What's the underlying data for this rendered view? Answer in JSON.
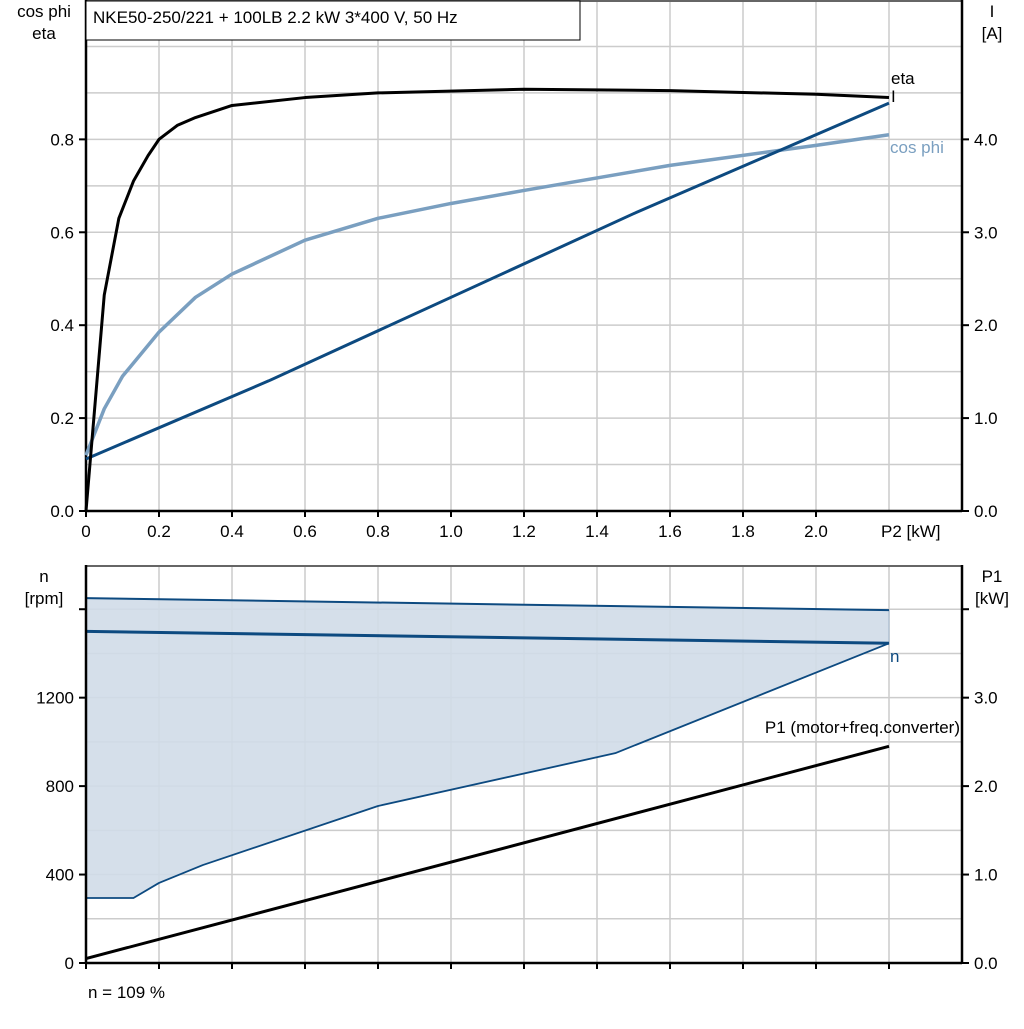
{
  "title": "NKE50-250/221 + 100LB   2.2 kW   3*400 V, 50 Hz",
  "footer": "n = 109 %",
  "colors": {
    "eta": "#000000",
    "current": "#0d4a80",
    "cosphi": "#7a9fc0",
    "speed": "#0d4a80",
    "band_fill": "#d0dce8",
    "p1": "#000000",
    "grid": "#cccccc"
  },
  "chart_data": [
    {
      "type": "line",
      "xlabel": "P2 [kW]",
      "xlim": [
        0,
        2.4
      ],
      "xticks": [
        "0",
        "0.2",
        "0.4",
        "0.6",
        "0.8",
        "1.0",
        "1.2",
        "1.4",
        "1.6",
        "1.8",
        "2.0"
      ],
      "ylabel_left": [
        "cos phi",
        "eta"
      ],
      "ylim_left": [
        0,
        1.1
      ],
      "yticks_left": [
        "0.0",
        "0.2",
        "0.4",
        "0.6",
        "0.8"
      ],
      "ylabel_right": [
        "I",
        "[A]"
      ],
      "ylim_right": [
        0,
        5.5
      ],
      "yticks_right": [
        "0.0",
        "1.0",
        "2.0",
        "3.0",
        "4.0"
      ],
      "grid": true,
      "series": [
        {
          "name": "eta",
          "axis": "left",
          "x": [
            0,
            0.05,
            0.09,
            0.13,
            0.17,
            0.2,
            0.25,
            0.3,
            0.4,
            0.6,
            0.8,
            1.2,
            1.6,
            2.0,
            2.2
          ],
          "y": [
            0,
            0.465,
            0.63,
            0.71,
            0.765,
            0.8,
            0.83,
            0.847,
            0.873,
            0.89,
            0.9,
            0.908,
            0.905,
            0.897,
            0.89
          ]
        },
        {
          "name": "cos phi",
          "axis": "left",
          "x": [
            0,
            0.05,
            0.1,
            0.2,
            0.3,
            0.4,
            0.6,
            0.8,
            1.0,
            1.2,
            1.6,
            2.0,
            2.2
          ],
          "y": [
            0.12,
            0.22,
            0.29,
            0.385,
            0.46,
            0.51,
            0.583,
            0.63,
            0.662,
            0.69,
            0.744,
            0.787,
            0.81
          ]
        },
        {
          "name": "I",
          "axis": "right",
          "x": [
            0,
            0.5,
            1.0,
            1.5,
            2.2
          ],
          "y": [
            0.56,
            1.4,
            2.3,
            3.2,
            4.39
          ]
        }
      ]
    },
    {
      "type": "line",
      "xlim": [
        0,
        2.4
      ],
      "ylabel_left": [
        "n",
        "[rpm]"
      ],
      "ylim_left": [
        0,
        1800
      ],
      "yticks_left": [
        "0",
        "400",
        "800",
        "1200"
      ],
      "ylabel_right": [
        "P1",
        "[kW]"
      ],
      "ylim_right": [
        0,
        4.5
      ],
      "yticks_right": [
        "0.0",
        "1.0",
        "2.0",
        "3.0"
      ],
      "grid": true,
      "series": [
        {
          "name": "n",
          "axis": "left",
          "x": [
            0,
            2.2
          ],
          "y": [
            1500,
            1446
          ]
        },
        {
          "role": "n max",
          "axis": "left",
          "x": [
            0,
            2.2
          ],
          "y": [
            1650,
            1596
          ]
        },
        {
          "role": "n min",
          "axis": "left",
          "x": [
            0,
            0.13,
            0.2,
            0.32,
            0.8,
            1.45,
            2.2
          ],
          "y": [
            294,
            294,
            362,
            443,
            710,
            949,
            1446
          ]
        },
        {
          "name": "P1 (motor+freq.converter)",
          "axis": "right",
          "x": [
            0,
            2.2
          ],
          "y": [
            0.05,
            2.45
          ]
        }
      ]
    }
  ]
}
